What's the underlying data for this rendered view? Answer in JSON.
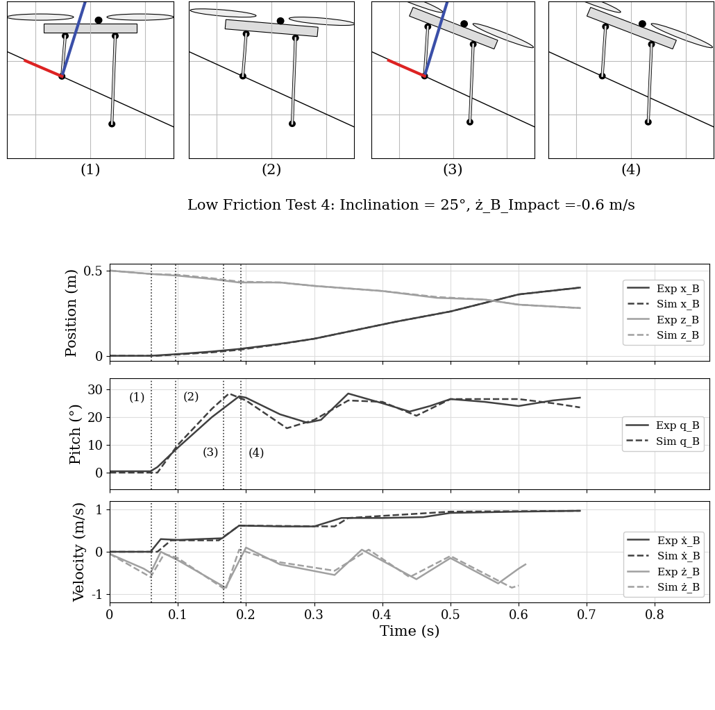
{
  "diagram": {
    "labels": [
      "(1)",
      "(2)",
      "(3)",
      "(4)"
    ]
  },
  "title": "Low Friction Test 4: Inclination = 25°, ż_B_Impact =-0.6 m/s",
  "chart_data": [
    {
      "type": "line",
      "y_label": "Position (m)",
      "xlim": [
        0,
        0.88
      ],
      "xticks": [
        0,
        0.1,
        0.2,
        0.3,
        0.4,
        0.5,
        0.6,
        0.7,
        0.8
      ],
      "ylim": [
        -0.03,
        0.54
      ],
      "yticks": [
        0,
        0.5
      ],
      "grid": true,
      "legend": "center right",
      "tick_labels": "y",
      "vlines": [
        0.061,
        0.097,
        0.167,
        0.193
      ],
      "series": [
        {
          "name": "Exp x_B",
          "color": "#404040",
          "line_style": "solid",
          "x": [
            0,
            0.06,
            0.1,
            0.15,
            0.19,
            0.25,
            0.3,
            0.36,
            0.42,
            0.5,
            0.55,
            0.6,
            0.69
          ],
          "values": [
            0,
            0.0,
            0.01,
            0.025,
            0.04,
            0.07,
            0.1,
            0.15,
            0.2,
            0.26,
            0.31,
            0.36,
            0.4
          ]
        },
        {
          "name": "Sim x_B",
          "color": "#404040",
          "line_style": "dashed",
          "x": [
            0,
            0.07,
            0.1,
            0.15,
            0.19,
            0.25,
            0.3,
            0.36,
            0.42,
            0.5,
            0.55,
            0.6,
            0.69
          ],
          "values": [
            0,
            0.0,
            0.008,
            0.02,
            0.035,
            0.068,
            0.1,
            0.15,
            0.2,
            0.26,
            0.31,
            0.36,
            0.4
          ]
        },
        {
          "name": "Exp z_B",
          "color": "#a0a0a0",
          "line_style": "solid",
          "x": [
            0,
            0.06,
            0.1,
            0.15,
            0.19,
            0.25,
            0.3,
            0.4,
            0.48,
            0.55,
            0.6,
            0.69
          ],
          "values": [
            0.5,
            0.48,
            0.47,
            0.45,
            0.43,
            0.43,
            0.41,
            0.38,
            0.34,
            0.33,
            0.3,
            0.28
          ]
        },
        {
          "name": "Sim z_B",
          "color": "#a0a0a0",
          "line_style": "dashed",
          "x": [
            0,
            0.06,
            0.1,
            0.15,
            0.19,
            0.25,
            0.3,
            0.4,
            0.48,
            0.55,
            0.6,
            0.69
          ],
          "values": [
            0.5,
            0.48,
            0.475,
            0.455,
            0.435,
            0.43,
            0.41,
            0.38,
            0.345,
            0.33,
            0.3,
            0.28
          ]
        }
      ]
    },
    {
      "type": "line",
      "y_label": "Pitch (°)",
      "xlim": [
        0,
        0.88
      ],
      "xticks": [
        0,
        0.1,
        0.2,
        0.3,
        0.4,
        0.5,
        0.6,
        0.7,
        0.8
      ],
      "ylim": [
        -6,
        34
      ],
      "yticks": [
        0,
        10,
        20,
        30
      ],
      "grid": true,
      "legend": "center right",
      "tick_labels": "y",
      "vlines": [
        0.061,
        0.097,
        0.167,
        0.193
      ],
      "annotations": [
        {
          "x": 0.04,
          "y": 27,
          "text": "(1)"
        },
        {
          "x": 0.12,
          "y": 27,
          "text": "(2)"
        },
        {
          "x": 0.148,
          "y": 7,
          "text": "(3)"
        },
        {
          "x": 0.215,
          "y": 7,
          "text": "(4)"
        }
      ],
      "series": [
        {
          "name": "Exp q_B",
          "color": "#404040",
          "line_style": "solid",
          "x": [
            0,
            0.06,
            0.07,
            0.1,
            0.15,
            0.19,
            0.2,
            0.25,
            0.29,
            0.31,
            0.35,
            0.4,
            0.44,
            0.47,
            0.5,
            0.55,
            0.6,
            0.65,
            0.69
          ],
          "values": [
            0.5,
            0.5,
            2,
            9,
            20,
            27.5,
            27,
            21,
            18,
            19,
            28.5,
            25,
            22,
            24,
            26.5,
            25.5,
            24,
            26,
            27
          ]
        },
        {
          "name": "Sim q_B",
          "color": "#404040",
          "line_style": "dashed",
          "x": [
            0,
            0.07,
            0.1,
            0.15,
            0.175,
            0.2,
            0.26,
            0.3,
            0.35,
            0.4,
            0.45,
            0.5,
            0.6,
            0.65,
            0.69
          ],
          "values": [
            0,
            0,
            10,
            23,
            28.5,
            26,
            16,
            19,
            26,
            25.5,
            20.5,
            26.5,
            26.5,
            25,
            23.5
          ]
        }
      ]
    },
    {
      "type": "line",
      "x_label": "Time (s)",
      "y_label": "Velocity (m/s)",
      "xlim": [
        0,
        0.88
      ],
      "xticks": [
        0,
        0.1,
        0.2,
        0.3,
        0.4,
        0.5,
        0.6,
        0.7,
        0.8
      ],
      "ylim": [
        -1.2,
        1.2
      ],
      "yticks": [
        -1,
        0,
        1
      ],
      "grid": true,
      "legend": "lower right",
      "vlines": [
        0.061,
        0.097,
        0.167,
        0.193
      ],
      "series": [
        {
          "name": "Exp ẋ_B",
          "color": "#404040",
          "line_style": "solid",
          "x": [
            0,
            0.06,
            0.075,
            0.1,
            0.165,
            0.19,
            0.25,
            0.3,
            0.34,
            0.4,
            0.46,
            0.5,
            0.6,
            0.69
          ],
          "values": [
            0,
            0,
            0.3,
            0.28,
            0.32,
            0.62,
            0.6,
            0.6,
            0.8,
            0.8,
            0.82,
            0.92,
            0.95,
            0.97
          ]
        },
        {
          "name": "Sim ẋ_B",
          "color": "#404040",
          "line_style": "dashed",
          "x": [
            0,
            0.07,
            0.09,
            0.16,
            0.19,
            0.33,
            0.35,
            0.5,
            0.69
          ],
          "values": [
            0,
            0,
            0.27,
            0.27,
            0.62,
            0.6,
            0.8,
            0.95,
            0.97
          ]
        },
        {
          "name": "Exp ż_B",
          "color": "#a0a0a0",
          "line_style": "solid",
          "x": [
            0,
            0.05,
            0.06,
            0.075,
            0.1,
            0.17,
            0.2,
            0.25,
            0.33,
            0.37,
            0.45,
            0.5,
            0.57,
            0.6,
            0.61
          ],
          "values": [
            -0.05,
            -0.4,
            -0.5,
            0,
            -0.2,
            -0.85,
            0.1,
            -0.3,
            -0.55,
            0.05,
            -0.65,
            -0.15,
            -0.75,
            -0.4,
            -0.3
          ]
        },
        {
          "name": "Sim ż_B",
          "color": "#a0a0a0",
          "line_style": "dashed",
          "x": [
            0,
            0.06,
            0.08,
            0.1,
            0.17,
            0.19,
            0.25,
            0.33,
            0.38,
            0.44,
            0.5,
            0.59,
            0.6
          ],
          "values": [
            -0.05,
            -0.6,
            -0.05,
            -0.15,
            -0.9,
            0.05,
            -0.25,
            -0.45,
            0.05,
            -0.6,
            -0.1,
            -0.85,
            -0.8
          ]
        }
      ]
    }
  ]
}
